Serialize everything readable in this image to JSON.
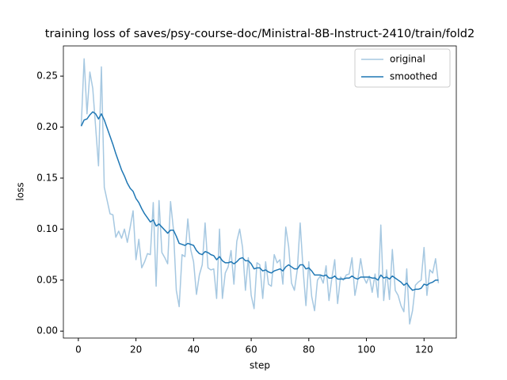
{
  "chart_data": {
    "type": "line",
    "title": "training loss of saves/psy-course-doc/Ministral-8B-Instruct-2410/train/fold2",
    "xlabel": "step",
    "ylabel": "loss",
    "x": [
      1,
      2,
      3,
      4,
      5,
      6,
      7,
      8,
      9,
      10,
      11,
      12,
      13,
      14,
      15,
      16,
      17,
      18,
      19,
      20,
      21,
      22,
      23,
      24,
      25,
      26,
      27,
      28,
      29,
      30,
      31,
      32,
      33,
      34,
      35,
      36,
      37,
      38,
      39,
      40,
      41,
      42,
      43,
      44,
      45,
      46,
      47,
      48,
      49,
      50,
      51,
      52,
      53,
      54,
      55,
      56,
      57,
      58,
      59,
      60,
      61,
      62,
      63,
      64,
      65,
      66,
      67,
      68,
      69,
      70,
      71,
      72,
      73,
      74,
      75,
      76,
      77,
      78,
      79,
      80,
      81,
      82,
      83,
      84,
      85,
      86,
      87,
      88,
      89,
      90,
      91,
      92,
      93,
      94,
      95,
      96,
      97,
      98,
      99,
      100,
      101,
      102,
      103,
      104,
      105,
      106,
      107,
      108,
      109,
      110,
      111,
      112,
      113,
      114,
      115,
      116,
      117,
      118,
      119,
      120,
      121,
      122,
      123,
      124,
      125
    ],
    "series": [
      {
        "name": "original",
        "color": "#a6c8e1",
        "values": [
          0.201,
          0.267,
          0.213,
          0.254,
          0.238,
          0.2,
          0.162,
          0.259,
          0.141,
          0.128,
          0.115,
          0.114,
          0.092,
          0.098,
          0.091,
          0.1,
          0.087,
          0.102,
          0.118,
          0.07,
          0.09,
          0.062,
          0.068,
          0.076,
          0.075,
          0.126,
          0.044,
          0.128,
          0.077,
          0.072,
          0.066,
          0.127,
          0.1,
          0.04,
          0.024,
          0.075,
          0.073,
          0.11,
          0.08,
          0.068,
          0.036,
          0.055,
          0.065,
          0.106,
          0.062,
          0.06,
          0.061,
          0.032,
          0.1,
          0.032,
          0.057,
          0.063,
          0.079,
          0.046,
          0.088,
          0.1,
          0.082,
          0.04,
          0.072,
          0.035,
          0.022,
          0.067,
          0.065,
          0.032,
          0.068,
          0.046,
          0.044,
          0.075,
          0.067,
          0.07,
          0.046,
          0.102,
          0.083,
          0.047,
          0.04,
          0.06,
          0.106,
          0.061,
          0.025,
          0.068,
          0.034,
          0.02,
          0.05,
          0.054,
          0.047,
          0.064,
          0.03,
          0.052,
          0.07,
          0.027,
          0.053,
          0.05,
          0.055,
          0.056,
          0.072,
          0.035,
          0.05,
          0.071,
          0.053,
          0.047,
          0.054,
          0.038,
          0.056,
          0.033,
          0.104,
          0.03,
          0.06,
          0.031,
          0.08,
          0.04,
          0.035,
          0.025,
          0.019,
          0.061,
          0.007,
          0.02,
          0.045,
          0.048,
          0.05,
          0.082,
          0.035,
          0.06,
          0.057,
          0.071,
          0.047
        ]
      },
      {
        "name": "smoothed",
        "color": "#1f77b4",
        "values": [
          0.201,
          0.207,
          0.208,
          0.212,
          0.215,
          0.213,
          0.208,
          0.213,
          0.207,
          0.199,
          0.191,
          0.183,
          0.174,
          0.166,
          0.158,
          0.152,
          0.145,
          0.14,
          0.137,
          0.13,
          0.126,
          0.12,
          0.115,
          0.111,
          0.107,
          0.109,
          0.103,
          0.105,
          0.102,
          0.099,
          0.096,
          0.099,
          0.099,
          0.093,
          0.086,
          0.085,
          0.084,
          0.086,
          0.085,
          0.084,
          0.079,
          0.076,
          0.075,
          0.078,
          0.077,
          0.075,
          0.074,
          0.07,
          0.073,
          0.069,
          0.067,
          0.067,
          0.068,
          0.066,
          0.068,
          0.071,
          0.072,
          0.069,
          0.069,
          0.066,
          0.061,
          0.062,
          0.062,
          0.059,
          0.06,
          0.058,
          0.057,
          0.059,
          0.06,
          0.061,
          0.059,
          0.063,
          0.065,
          0.063,
          0.061,
          0.061,
          0.065,
          0.065,
          0.061,
          0.062,
          0.059,
          0.055,
          0.055,
          0.055,
          0.054,
          0.055,
          0.052,
          0.052,
          0.054,
          0.051,
          0.051,
          0.051,
          0.052,
          0.052,
          0.054,
          0.052,
          0.051,
          0.053,
          0.053,
          0.053,
          0.053,
          0.052,
          0.052,
          0.05,
          0.055,
          0.052,
          0.053,
          0.051,
          0.054,
          0.052,
          0.05,
          0.048,
          0.045,
          0.047,
          0.043,
          0.04,
          0.041,
          0.041,
          0.042,
          0.046,
          0.045,
          0.047,
          0.048,
          0.05,
          0.05
        ]
      }
    ],
    "xlim": [
      -5.2,
      131.2
    ],
    "xticks": [
      0,
      20,
      40,
      60,
      80,
      100,
      120
    ],
    "ylim": [
      -0.0068,
      0.2796
    ],
    "yticks": [
      {
        "value": 0,
        "label": "0.00"
      },
      {
        "value": 0.05,
        "label": "0.05"
      },
      {
        "value": 0.1,
        "label": "0.10"
      },
      {
        "value": 0.15,
        "label": "0.15"
      },
      {
        "value": 0.2,
        "label": "0.20"
      },
      {
        "value": 0.25,
        "label": "0.25"
      }
    ],
    "legend": "upper right"
  }
}
